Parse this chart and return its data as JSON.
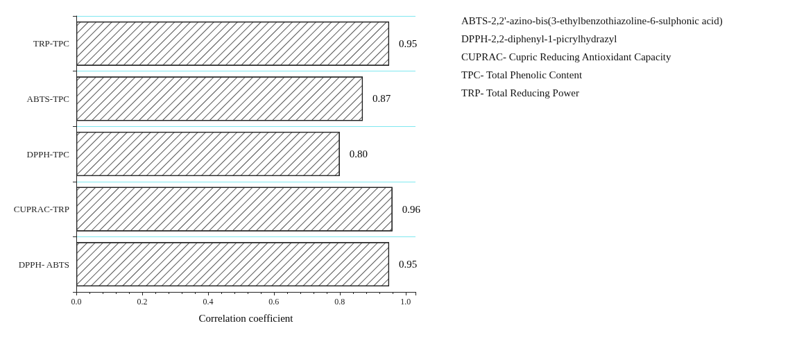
{
  "chart_data": {
    "type": "bar",
    "orientation": "horizontal",
    "xlabel": "Correlation coefficient",
    "categories": [
      "TRP-TPC",
      "ABTS-TPC",
      "DPPH-TPC",
      "CUPRAC-TRP",
      "DPPH- ABTS"
    ],
    "values": [
      0.95,
      0.87,
      0.8,
      0.96,
      0.95
    ],
    "value_labels": [
      "0.95",
      "0.87",
      "0.80",
      "0.96",
      "0.95"
    ],
    "color": "#ffffff",
    "xlim": [
      0,
      1.03
    ],
    "xticks": [
      {
        "value": 0,
        "label": "0.0"
      },
      0.2,
      0.4,
      0.6,
      0.8,
      {
        "value": 1,
        "label": "1.0"
      }
    ],
    "grid": "y",
    "annotations": [
      "ABTS-2,2'-azino-bis(3-ethylbenzothiazoline-6-sulphonic acid)",
      "DPPH-2,2-diphenyl-1-picrylhydrazyl",
      "CUPRAC- Cupric Reducing Antioxidant Capacity",
      "TPC- Total Phenolic Content",
      "TRP- Total Reducing Power"
    ]
  }
}
